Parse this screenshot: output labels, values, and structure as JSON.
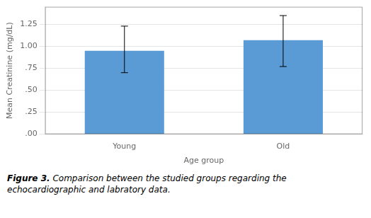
{
  "chart_data": {
    "type": "bar",
    "categories": [
      "Young",
      "Old"
    ],
    "values": [
      0.95,
      1.07
    ],
    "error_upper": [
      0.28,
      0.28
    ],
    "error_lower": [
      0.25,
      0.3
    ],
    "color": "#5B9BD5",
    "xlabel": "Age group",
    "ylabel": "Mean Creatinine (mg/dL)",
    "ylim": [
      0.0,
      1.45
    ],
    "yticks": [
      {
        "value": 0.0,
        "label": ".00"
      },
      {
        "value": 0.25,
        "label": ".25"
      },
      {
        "value": 0.5,
        "label": ".50"
      },
      {
        "value": 0.75,
        "label": ".75"
      },
      {
        "value": 1.0,
        "label": "1.00"
      },
      {
        "value": 1.25,
        "label": "1.25"
      }
    ],
    "grid": true,
    "annotations": [
      "Figure 3.",
      "Comparison between the studied groups regarding the\nechocardiographic and labratory data."
    ]
  }
}
